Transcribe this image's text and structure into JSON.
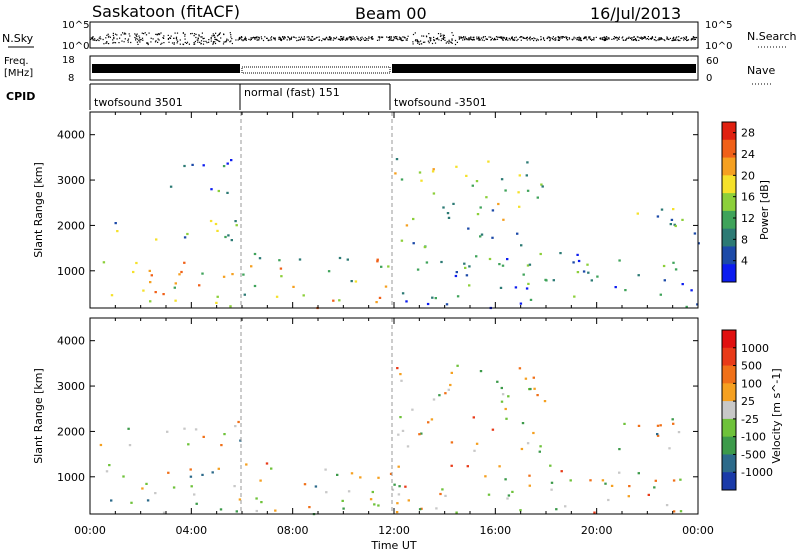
{
  "header": {
    "site": "Saskatoon (fitACF)",
    "beam": "Beam 00",
    "date": "16/Jul/2013"
  },
  "panels": {
    "nsky": {
      "label": "N.Sky",
      "right_label": "N.Search",
      "ticks_left": [
        "10^5",
        "10^0"
      ],
      "ticks_right": [
        "10^5",
        "10^0"
      ]
    },
    "freq": {
      "label_lines": [
        "Freq.",
        "[MHz]"
      ],
      "right_label": "Nave",
      "ticks_left": [
        "18",
        "8"
      ],
      "ticks_right": [
        "60",
        "0"
      ]
    },
    "cpid": {
      "label": "CPID",
      "segments": [
        "twofsound 3501",
        "normal (fast) 151",
        "twofsound -3501"
      ]
    }
  },
  "chart_data": [
    {
      "type": "heatmap",
      "title": "",
      "xlabel": "Time UT",
      "ylabel": "Slant Range [km]",
      "x_ticks": [
        "00:00",
        "04:00",
        "08:00",
        "12:00",
        "16:00",
        "20:00",
        "00:00"
      ],
      "xlim": [
        0,
        24
      ],
      "ylim": [
        180,
        4500
      ],
      "y_ticks": [
        1000,
        2000,
        3000,
        4000
      ],
      "colorbar": {
        "label": "Power [dB]",
        "ticks": [
          4,
          8,
          12,
          16,
          20,
          24,
          28
        ],
        "range": [
          0,
          30
        ],
        "colors": [
          "#0c1cf0",
          "#1c4aa8",
          "#2c7a74",
          "#3fa35a",
          "#8ccf3a",
          "#f5e12a",
          "#f5a020",
          "#f06018",
          "#e02010"
        ]
      },
      "features": [
        {
          "t": [
            0.5,
            6.0
          ],
          "r": [
            180,
            1300
          ],
          "level": 0.62
        },
        {
          "t": [
            6.0,
            12.0
          ],
          "r": [
            200,
            1400
          ],
          "level": 0.55
        },
        {
          "t": [
            12.0,
            24.0
          ],
          "r": [
            200,
            1300
          ],
          "level": 0.25
        },
        {
          "t": [
            0.3,
            6.0
          ],
          "r": [
            1700,
            2300
          ],
          "level": 0.45
        },
        {
          "t": [
            2.3,
            5.7
          ],
          "r": [
            2700,
            3500
          ],
          "level": 0.2
        },
        {
          "t": [
            12.0,
            18.0
          ],
          "r": [
            1500,
            3500
          ],
          "level": 0.45
        },
        {
          "t": [
            14.0,
            20.0
          ],
          "r": [
            1100,
            1500
          ],
          "level": 0.3
        },
        {
          "t": [
            20.5,
            24.0
          ],
          "r": [
            1600,
            2400
          ],
          "level": 0.4
        }
      ]
    },
    {
      "type": "heatmap",
      "title": "",
      "xlabel": "Time UT",
      "ylabel": "Slant Range [km]",
      "x_ticks": [
        "00:00",
        "04:00",
        "08:00",
        "12:00",
        "16:00",
        "20:00",
        "00:00"
      ],
      "xlim": [
        0,
        24
      ],
      "ylim": [
        180,
        4500
      ],
      "y_ticks": [
        1000,
        2000,
        3000,
        4000
      ],
      "colorbar": {
        "label": "Velocity [m s^-1]",
        "ticks": [
          1000,
          500,
          100,
          25,
          -25,
          -100,
          -500,
          -1000
        ],
        "colors": [
          "#1a3aa8",
          "#2c6a8a",
          "#3c9a4a",
          "#6ec23a",
          "#c8c8c8",
          "#f5a020",
          "#f07018",
          "#e83a18",
          "#e01010"
        ]
      },
      "features": [
        {
          "t": [
            0.5,
            6.0
          ],
          "r": [
            180,
            1300
          ],
          "level": 0.45
        },
        {
          "t": [
            6.0,
            12.0
          ],
          "r": [
            200,
            1400
          ],
          "level": 0.5
        },
        {
          "t": [
            12.0,
            24.0
          ],
          "r": [
            200,
            1300
          ],
          "level": 0.55
        },
        {
          "t": [
            0.3,
            6.0
          ],
          "r": [
            1700,
            2300
          ],
          "level": 0.5
        },
        {
          "t": [
            12.0,
            18.0
          ],
          "r": [
            1500,
            3500
          ],
          "level": 0.55
        },
        {
          "t": [
            20.5,
            24.0
          ],
          "r": [
            1600,
            2400
          ],
          "level": 0.5
        }
      ]
    }
  ]
}
